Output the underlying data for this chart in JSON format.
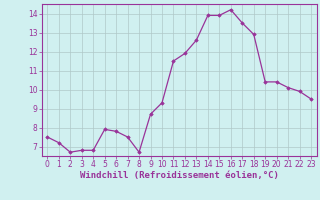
{
  "x": [
    0,
    1,
    2,
    3,
    4,
    5,
    6,
    7,
    8,
    9,
    10,
    11,
    12,
    13,
    14,
    15,
    16,
    17,
    18,
    19,
    20,
    21,
    22,
    23
  ],
  "y": [
    7.5,
    7.2,
    6.7,
    6.8,
    6.8,
    7.9,
    7.8,
    7.5,
    6.7,
    8.7,
    9.3,
    11.5,
    11.9,
    12.6,
    13.9,
    13.9,
    14.2,
    13.5,
    12.9,
    10.4,
    10.4,
    10.1,
    9.9,
    9.5
  ],
  "line_color": "#993399",
  "marker": "D",
  "markersize": 1.8,
  "linewidth": 0.9,
  "xlabel": "Windchill (Refroidissement éolien,°C)",
  "xlabel_fontsize": 6.5,
  "ylim": [
    6.5,
    14.5
  ],
  "xlim": [
    -0.5,
    23.5
  ],
  "yticks": [
    7,
    8,
    9,
    10,
    11,
    12,
    13,
    14
  ],
  "xticks": [
    0,
    1,
    2,
    3,
    4,
    5,
    6,
    7,
    8,
    9,
    10,
    11,
    12,
    13,
    14,
    15,
    16,
    17,
    18,
    19,
    20,
    21,
    22,
    23
  ],
  "background_color": "#d0f0f0",
  "grid_color": "#b0c8c8",
  "tick_fontsize": 5.5,
  "xlabel_color": "#993399",
  "tick_color": "#993399",
  "spine_color": "#993399"
}
